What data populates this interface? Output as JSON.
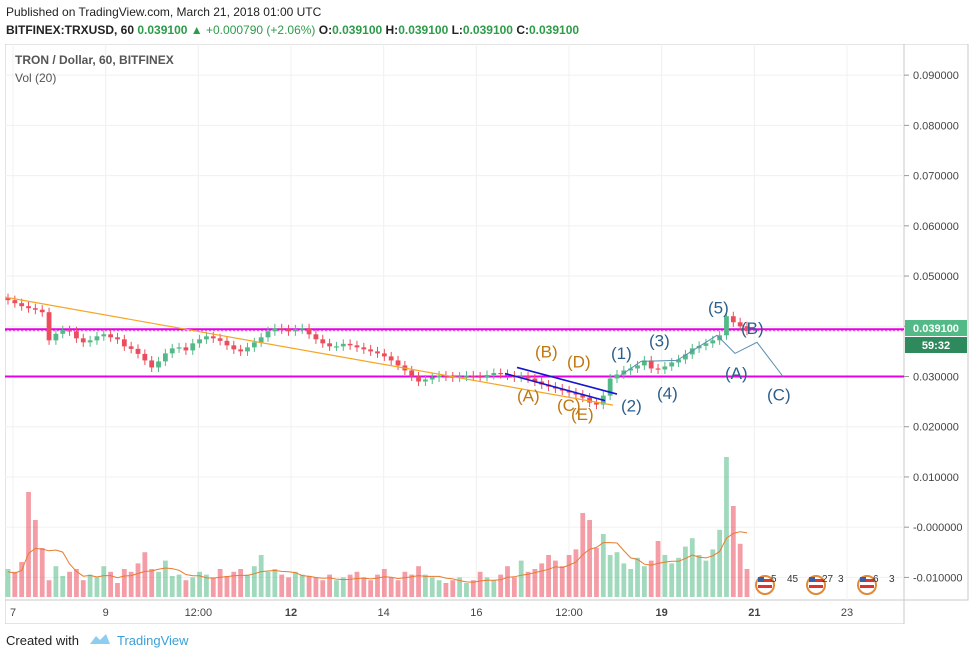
{
  "header": {
    "published": "Published on TradingView.com, March 21, 2018 01:00 UTC",
    "symbol": "BITFINEX:TRXUSD, 60",
    "last": "0.039100",
    "change": "+0.000790 (+2.06%)",
    "o_label": "O:",
    "o": "0.039100",
    "h_label": "H:",
    "h": "0.039100",
    "l_label": "L:",
    "l": "0.039100",
    "c_label": "C:",
    "c": "0.039100"
  },
  "legend": {
    "title": "TRON / Dollar, 60, BITFINEX",
    "volume": "Vol (20)"
  },
  "price_tag": {
    "value": "0.039100",
    "countdown": "59:32"
  },
  "footer": {
    "created": "Created with",
    "brand": "TradingView"
  },
  "colors": {
    "up": "#53b987",
    "down": "#eb4d5c",
    "magenta": "#e500e5",
    "trend": "#f5a623",
    "blue": "#1414d2",
    "wave_orange": "#c0770f",
    "wave_blue": "#2d5f8a",
    "axis_text": "#444"
  },
  "events": [
    {
      "date": "5",
      "time": "45"
    },
    {
      "date": "27",
      "time": "3"
    },
    {
      "date": "6",
      "time": "3"
    }
  ],
  "chart_data": {
    "type": "candlestick",
    "title": "TRON / Dollar, 60, BITFINEX",
    "price_axis": {
      "ticks": [
        "0.090000",
        "0.080000",
        "0.070000",
        "0.060000",
        "0.050000",
        "0.040000",
        "0.030000",
        "0.020000",
        "0.010000",
        "-0.000000",
        "-0.010000"
      ],
      "range": [
        -0.0145,
        0.0962
      ]
    },
    "time_axis": {
      "ticks": [
        "7",
        "9",
        "12:00",
        "12",
        "14",
        "16",
        "12:00",
        "19",
        "21",
        "23"
      ],
      "bold": [
        "12",
        "19",
        "21"
      ]
    },
    "horizontal_levels": [
      0.0394,
      0.03
    ],
    "trendline": {
      "start": {
        "x": "7",
        "y": 0.0458
      },
      "end": {
        "x": "19",
        "y": 0.0243
      }
    },
    "channel_lines": [
      {
        "start": 0.0318,
        "end": 0.0265
      },
      {
        "start": 0.0306,
        "end": 0.0252
      }
    ],
    "wave_labels_orange": [
      "(A)",
      "(B)",
      "(C)",
      "(D)",
      "(E)"
    ],
    "wave_labels_blue": [
      "(1)",
      "(2)",
      "(3)",
      "(4)",
      "(5)",
      "(A)",
      "(B)",
      "(C)"
    ],
    "close_path": [
      0.0452,
      0.0446,
      0.044,
      0.0436,
      0.0433,
      0.0428,
      0.0372,
      0.0385,
      0.0392,
      0.039,
      0.0376,
      0.0368,
      0.0372,
      0.038,
      0.0384,
      0.0378,
      0.0374,
      0.036,
      0.0355,
      0.0345,
      0.0332,
      0.0318,
      0.033,
      0.0346,
      0.0356,
      0.0358,
      0.0352,
      0.0366,
      0.0374,
      0.038,
      0.0376,
      0.0371,
      0.0362,
      0.0354,
      0.035,
      0.0358,
      0.0368,
      0.0378,
      0.039,
      0.0396,
      0.0394,
      0.039,
      0.0394,
      0.0396,
      0.0384,
      0.0374,
      0.0366,
      0.036,
      0.036,
      0.0365,
      0.0362,
      0.0358,
      0.0354,
      0.035,
      0.0346,
      0.034,
      0.0332,
      0.0322,
      0.0312,
      0.03,
      0.029,
      0.0294,
      0.0298,
      0.0302,
      0.03,
      0.0298,
      0.03,
      0.0302,
      0.03,
      0.0299,
      0.0303,
      0.0307,
      0.0305,
      0.0302,
      0.0298,
      0.03,
      0.0296,
      0.029,
      0.0284,
      0.028,
      0.0276,
      0.0272,
      0.0268,
      0.0264,
      0.0258,
      0.0248,
      0.0244,
      0.0262,
      0.0296,
      0.0304,
      0.0312,
      0.0316,
      0.0322,
      0.0332,
      0.0316,
      0.0314,
      0.032,
      0.0328,
      0.0334,
      0.0344,
      0.0356,
      0.0361,
      0.0366,
      0.0372,
      0.0382,
      0.042,
      0.0408,
      0.04,
      0.0391
    ],
    "volume_series": [
      0.2,
      0.18,
      0.25,
      0.75,
      0.55,
      0.35,
      0.12,
      0.22,
      0.15,
      0.18,
      0.2,
      0.12,
      0.16,
      0.14,
      0.22,
      0.18,
      0.1,
      0.2,
      0.18,
      0.24,
      0.32,
      0.2,
      0.18,
      0.26,
      0.15,
      0.16,
      0.12,
      0.14,
      0.18,
      0.16,
      0.14,
      0.2,
      0.15,
      0.18,
      0.2,
      0.16,
      0.22,
      0.3,
      0.18,
      0.2,
      0.16,
      0.14,
      0.18,
      0.16,
      0.15,
      0.14,
      0.12,
      0.16,
      0.12,
      0.14,
      0.16,
      0.18,
      0.14,
      0.12,
      0.16,
      0.2,
      0.14,
      0.12,
      0.18,
      0.16,
      0.22,
      0.16,
      0.14,
      0.12,
      0.1,
      0.12,
      0.14,
      0.1,
      0.12,
      0.18,
      0.14,
      0.12,
      0.16,
      0.22,
      0.14,
      0.26,
      0.18,
      0.2,
      0.24,
      0.3,
      0.26,
      0.22,
      0.3,
      0.34,
      0.6,
      0.55,
      0.35,
      0.45,
      0.3,
      0.32,
      0.24,
      0.2,
      0.28,
      0.22,
      0.26,
      0.4,
      0.3,
      0.24,
      0.28,
      0.36,
      0.42,
      0.3,
      0.26,
      0.34,
      0.48,
      1.0,
      0.65,
      0.38,
      0.2
    ]
  }
}
